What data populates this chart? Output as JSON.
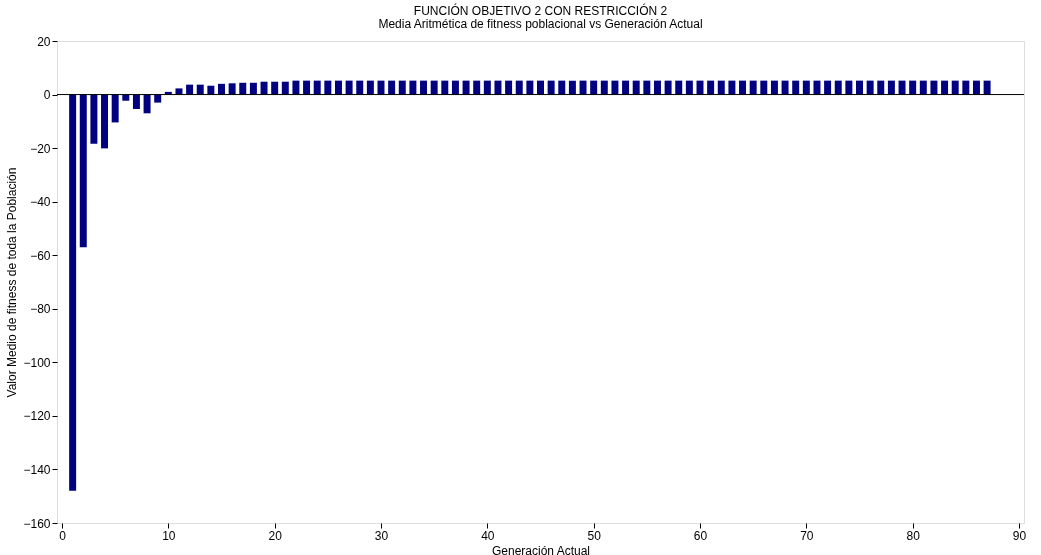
{
  "chart_data": {
    "type": "bar",
    "title": "FUNCIÓN OBJETIVO 2 CON RESTRICCIÓN 2",
    "subtitle": "Media Aritmética de fitness poblacional vs Generación Actual",
    "xlabel": "Generación Actual",
    "ylabel": "Valor Medio de fitness de toda la Población",
    "x": [
      1,
      2,
      3,
      4,
      5,
      6,
      7,
      8,
      9,
      10,
      11,
      12,
      13,
      14,
      15,
      16,
      17,
      18,
      19,
      20,
      21,
      22,
      23,
      24,
      25,
      26,
      27,
      28,
      29,
      30,
      31,
      32,
      33,
      34,
      35,
      36,
      37,
      38,
      39,
      40,
      41,
      42,
      43,
      44,
      45,
      46,
      47,
      48,
      49,
      50,
      51,
      52,
      53,
      54,
      55,
      56,
      57,
      58,
      59,
      60,
      61,
      62,
      63,
      64,
      65,
      66,
      67,
      68,
      69,
      70,
      71,
      72,
      73,
      74,
      75,
      76,
      77,
      78,
      79,
      80,
      81,
      82,
      83,
      84,
      85,
      86,
      87
    ],
    "values": [
      -148,
      -57,
      -18.4,
      -20.1,
      -10.4,
      -2.3,
      -5.4,
      -7,
      -3,
      1,
      2.3,
      3.7,
      3.7,
      3.3,
      4,
      4.2,
      4.4,
      4.4,
      4.8,
      4.8,
      4.8,
      5.2,
      5.2,
      5.2,
      5.2,
      5.2,
      5.2,
      5.2,
      5.2,
      5.2,
      5.2,
      5.2,
      5.2,
      5.2,
      5.2,
      5.2,
      5.2,
      5.2,
      5.2,
      5.2,
      5.2,
      5.2,
      5.2,
      5.2,
      5.2,
      5.2,
      5.2,
      5.2,
      5.2,
      5.2,
      5.2,
      5.2,
      5.2,
      5.2,
      5.2,
      5.2,
      5.2,
      5.2,
      5.2,
      5.2,
      5.2,
      5.2,
      5.2,
      5.2,
      5.2,
      5.2,
      5.2,
      5.2,
      5.2,
      5.2,
      5.2,
      5.2,
      5.2,
      5.2,
      5.2,
      5.2,
      5.2,
      5.2,
      5.2,
      5.2,
      5.2,
      5.2,
      5.2,
      5.2,
      5.2,
      5.2,
      5.2
    ],
    "color": "#000080",
    "xlim": [
      0,
      90
    ],
    "xticks": [
      0,
      10,
      20,
      30,
      40,
      50,
      60,
      70,
      80,
      90
    ],
    "ylim": [
      -160,
      20
    ],
    "yticks": [
      -160,
      -140,
      -120,
      -100,
      -80,
      -60,
      -40,
      -20,
      0,
      20
    ],
    "ref_lines": [
      {
        "axis": "y",
        "value": 0,
        "color": "#000000"
      }
    ],
    "grid": false
  }
}
